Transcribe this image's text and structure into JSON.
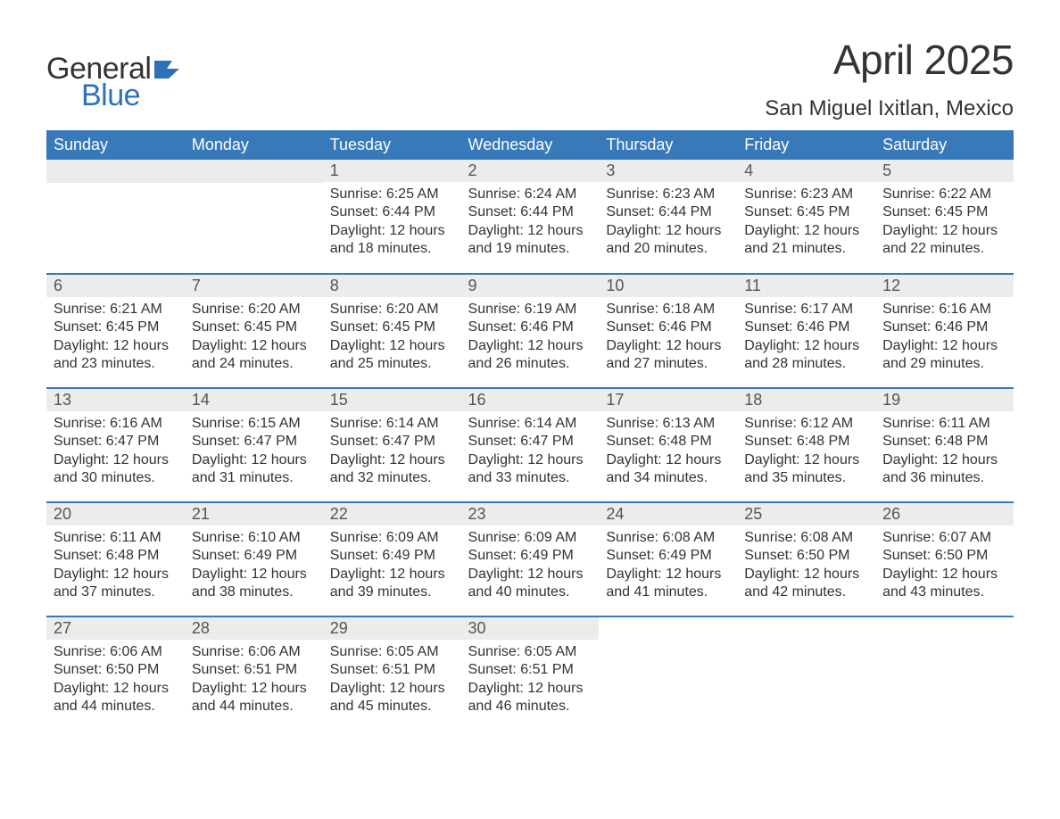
{
  "brand": {
    "general": "General",
    "blue": "Blue",
    "accent_color": "#2d72b8"
  },
  "title": "April 2025",
  "location": "San Miguel Ixitlan, Mexico",
  "colors": {
    "header_bg": "#3879ba",
    "header_fg": "#ffffff",
    "daynum_bg": "#ececec",
    "text": "#333333",
    "row_border": "#3879ba"
  },
  "weekday_headers": [
    "Sunday",
    "Monday",
    "Tuesday",
    "Wednesday",
    "Thursday",
    "Friday",
    "Saturday"
  ],
  "weeks": [
    [
      null,
      null,
      {
        "n": "1",
        "sunrise": "Sunrise: 6:25 AM",
        "sunset": "Sunset: 6:44 PM",
        "daylight": "Daylight: 12 hours and 18 minutes."
      },
      {
        "n": "2",
        "sunrise": "Sunrise: 6:24 AM",
        "sunset": "Sunset: 6:44 PM",
        "daylight": "Daylight: 12 hours and 19 minutes."
      },
      {
        "n": "3",
        "sunrise": "Sunrise: 6:23 AM",
        "sunset": "Sunset: 6:44 PM",
        "daylight": "Daylight: 12 hours and 20 minutes."
      },
      {
        "n": "4",
        "sunrise": "Sunrise: 6:23 AM",
        "sunset": "Sunset: 6:45 PM",
        "daylight": "Daylight: 12 hours and 21 minutes."
      },
      {
        "n": "5",
        "sunrise": "Sunrise: 6:22 AM",
        "sunset": "Sunset: 6:45 PM",
        "daylight": "Daylight: 12 hours and 22 minutes."
      }
    ],
    [
      {
        "n": "6",
        "sunrise": "Sunrise: 6:21 AM",
        "sunset": "Sunset: 6:45 PM",
        "daylight": "Daylight: 12 hours and 23 minutes."
      },
      {
        "n": "7",
        "sunrise": "Sunrise: 6:20 AM",
        "sunset": "Sunset: 6:45 PM",
        "daylight": "Daylight: 12 hours and 24 minutes."
      },
      {
        "n": "8",
        "sunrise": "Sunrise: 6:20 AM",
        "sunset": "Sunset: 6:45 PM",
        "daylight": "Daylight: 12 hours and 25 minutes."
      },
      {
        "n": "9",
        "sunrise": "Sunrise: 6:19 AM",
        "sunset": "Sunset: 6:46 PM",
        "daylight": "Daylight: 12 hours and 26 minutes."
      },
      {
        "n": "10",
        "sunrise": "Sunrise: 6:18 AM",
        "sunset": "Sunset: 6:46 PM",
        "daylight": "Daylight: 12 hours and 27 minutes."
      },
      {
        "n": "11",
        "sunrise": "Sunrise: 6:17 AM",
        "sunset": "Sunset: 6:46 PM",
        "daylight": "Daylight: 12 hours and 28 minutes."
      },
      {
        "n": "12",
        "sunrise": "Sunrise: 6:16 AM",
        "sunset": "Sunset: 6:46 PM",
        "daylight": "Daylight: 12 hours and 29 minutes."
      }
    ],
    [
      {
        "n": "13",
        "sunrise": "Sunrise: 6:16 AM",
        "sunset": "Sunset: 6:47 PM",
        "daylight": "Daylight: 12 hours and 30 minutes."
      },
      {
        "n": "14",
        "sunrise": "Sunrise: 6:15 AM",
        "sunset": "Sunset: 6:47 PM",
        "daylight": "Daylight: 12 hours and 31 minutes."
      },
      {
        "n": "15",
        "sunrise": "Sunrise: 6:14 AM",
        "sunset": "Sunset: 6:47 PM",
        "daylight": "Daylight: 12 hours and 32 minutes."
      },
      {
        "n": "16",
        "sunrise": "Sunrise: 6:14 AM",
        "sunset": "Sunset: 6:47 PM",
        "daylight": "Daylight: 12 hours and 33 minutes."
      },
      {
        "n": "17",
        "sunrise": "Sunrise: 6:13 AM",
        "sunset": "Sunset: 6:48 PM",
        "daylight": "Daylight: 12 hours and 34 minutes."
      },
      {
        "n": "18",
        "sunrise": "Sunrise: 6:12 AM",
        "sunset": "Sunset: 6:48 PM",
        "daylight": "Daylight: 12 hours and 35 minutes."
      },
      {
        "n": "19",
        "sunrise": "Sunrise: 6:11 AM",
        "sunset": "Sunset: 6:48 PM",
        "daylight": "Daylight: 12 hours and 36 minutes."
      }
    ],
    [
      {
        "n": "20",
        "sunrise": "Sunrise: 6:11 AM",
        "sunset": "Sunset: 6:48 PM",
        "daylight": "Daylight: 12 hours and 37 minutes."
      },
      {
        "n": "21",
        "sunrise": "Sunrise: 6:10 AM",
        "sunset": "Sunset: 6:49 PM",
        "daylight": "Daylight: 12 hours and 38 minutes."
      },
      {
        "n": "22",
        "sunrise": "Sunrise: 6:09 AM",
        "sunset": "Sunset: 6:49 PM",
        "daylight": "Daylight: 12 hours and 39 minutes."
      },
      {
        "n": "23",
        "sunrise": "Sunrise: 6:09 AM",
        "sunset": "Sunset: 6:49 PM",
        "daylight": "Daylight: 12 hours and 40 minutes."
      },
      {
        "n": "24",
        "sunrise": "Sunrise: 6:08 AM",
        "sunset": "Sunset: 6:49 PM",
        "daylight": "Daylight: 12 hours and 41 minutes."
      },
      {
        "n": "25",
        "sunrise": "Sunrise: 6:08 AM",
        "sunset": "Sunset: 6:50 PM",
        "daylight": "Daylight: 12 hours and 42 minutes."
      },
      {
        "n": "26",
        "sunrise": "Sunrise: 6:07 AM",
        "sunset": "Sunset: 6:50 PM",
        "daylight": "Daylight: 12 hours and 43 minutes."
      }
    ],
    [
      {
        "n": "27",
        "sunrise": "Sunrise: 6:06 AM",
        "sunset": "Sunset: 6:50 PM",
        "daylight": "Daylight: 12 hours and 44 minutes."
      },
      {
        "n": "28",
        "sunrise": "Sunrise: 6:06 AM",
        "sunset": "Sunset: 6:51 PM",
        "daylight": "Daylight: 12 hours and 44 minutes."
      },
      {
        "n": "29",
        "sunrise": "Sunrise: 6:05 AM",
        "sunset": "Sunset: 6:51 PM",
        "daylight": "Daylight: 12 hours and 45 minutes."
      },
      {
        "n": "30",
        "sunrise": "Sunrise: 6:05 AM",
        "sunset": "Sunset: 6:51 PM",
        "daylight": "Daylight: 12 hours and 46 minutes."
      },
      null,
      null,
      null
    ]
  ]
}
